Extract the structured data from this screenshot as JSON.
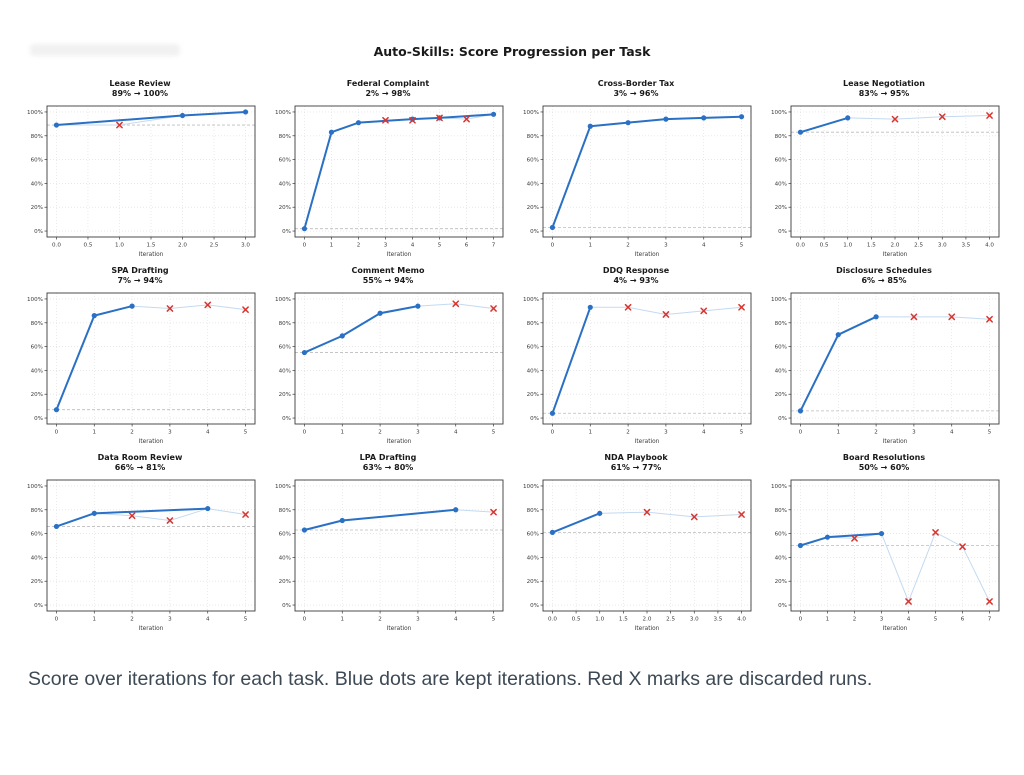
{
  "page": {
    "caption": "Score over iterations for each task. Blue dots are kept iterations. Red X marks are discarded runs."
  },
  "chart_data": {
    "type": "line",
    "title": "Auto-Skills: Score Progression per Task",
    "xlabel": "Iteration",
    "ylim": [
      0,
      100
    ],
    "yticks": [
      0,
      20,
      40,
      60,
      80,
      100
    ],
    "ytick_labels": [
      "0%",
      "20%",
      "40%",
      "60%",
      "80%",
      "100%"
    ],
    "grid": true,
    "legend_note": {
      "kept": "Blue dots = kept iterations",
      "discarded": "Red X = discarded runs"
    },
    "colors": {
      "kept_line": "#2a70c4",
      "kept_dot": "#2a70c4",
      "run_line": "#c3daf1",
      "discarded_x": "#d9352f",
      "baseline": "#bcbcbc",
      "gridline": "#dcdcdc",
      "spine": "#3a3a3a",
      "tick_text": "#3a3a3a"
    },
    "subplots": [
      {
        "title": "Lease Review",
        "subtitle": "89% → 100%",
        "xticks": [
          0,
          0.5,
          1,
          1.5,
          2,
          2.5,
          3
        ],
        "xtick_labels": [
          "0.0",
          "0.5",
          "1.0",
          "1.5",
          "2.0",
          "2.5",
          "3.0"
        ],
        "baseline": 89,
        "kept": [
          [
            0,
            89
          ],
          [
            2,
            97
          ],
          [
            3,
            100
          ]
        ],
        "discarded": [
          [
            1,
            89
          ]
        ]
      },
      {
        "title": "Federal Complaint",
        "subtitle": "2% → 98%",
        "xticks": [
          0,
          1,
          2,
          3,
          4,
          5,
          6,
          7
        ],
        "xtick_labels": [
          "0",
          "1",
          "2",
          "3",
          "4",
          "5",
          "6",
          "7"
        ],
        "baseline": 2,
        "kept": [
          [
            0,
            2
          ],
          [
            1,
            83
          ],
          [
            2,
            91
          ],
          [
            4,
            94
          ],
          [
            5,
            95
          ],
          [
            7,
            98
          ]
        ],
        "discarded": [
          [
            3,
            93
          ],
          [
            4,
            93
          ],
          [
            5,
            95
          ],
          [
            6,
            94
          ]
        ]
      },
      {
        "title": "Cross-Border Tax",
        "subtitle": "3% → 96%",
        "xticks": [
          0,
          1,
          2,
          3,
          4,
          5
        ],
        "xtick_labels": [
          "0",
          "1",
          "2",
          "3",
          "4",
          "5"
        ],
        "baseline": 3,
        "kept": [
          [
            0,
            3
          ],
          [
            1,
            88
          ],
          [
            2,
            91
          ],
          [
            3,
            94
          ],
          [
            4,
            95
          ],
          [
            5,
            96
          ]
        ],
        "discarded": []
      },
      {
        "title": "Lease Negotiation",
        "subtitle": "83% → 95%",
        "xticks": [
          0,
          0.5,
          1,
          1.5,
          2,
          2.5,
          3,
          3.5,
          4
        ],
        "xtick_labels": [
          "0.0",
          "0.5",
          "1.0",
          "1.5",
          "2.0",
          "2.5",
          "3.0",
          "3.5",
          "4.0"
        ],
        "baseline": 83,
        "kept": [
          [
            0,
            83
          ],
          [
            1,
            95
          ]
        ],
        "discarded": [
          [
            2,
            94
          ],
          [
            3,
            96
          ],
          [
            4,
            97
          ]
        ]
      },
      {
        "title": "SPA Drafting",
        "subtitle": "7% → 94%",
        "xticks": [
          0,
          1,
          2,
          3,
          4,
          5
        ],
        "xtick_labels": [
          "0",
          "1",
          "2",
          "3",
          "4",
          "5"
        ],
        "baseline": 7,
        "kept": [
          [
            0,
            7
          ],
          [
            1,
            86
          ],
          [
            2,
            94
          ]
        ],
        "discarded": [
          [
            3,
            92
          ],
          [
            4,
            95
          ],
          [
            5,
            91
          ]
        ]
      },
      {
        "title": "Comment Memo",
        "subtitle": "55% → 94%",
        "xticks": [
          0,
          1,
          2,
          3,
          4,
          5
        ],
        "xtick_labels": [
          "0",
          "1",
          "2",
          "3",
          "4",
          "5"
        ],
        "baseline": 55,
        "kept": [
          [
            0,
            55
          ],
          [
            1,
            69
          ],
          [
            2,
            88
          ],
          [
            3,
            94
          ]
        ],
        "discarded": [
          [
            4,
            96
          ],
          [
            5,
            92
          ]
        ]
      },
      {
        "title": "DDQ Response",
        "subtitle": "4% → 93%",
        "xticks": [
          0,
          1,
          2,
          3,
          4,
          5
        ],
        "xtick_labels": [
          "0",
          "1",
          "2",
          "3",
          "4",
          "5"
        ],
        "baseline": 4,
        "kept": [
          [
            0,
            4
          ],
          [
            1,
            93
          ]
        ],
        "discarded": [
          [
            2,
            93
          ],
          [
            3,
            87
          ],
          [
            4,
            90
          ],
          [
            5,
            93
          ]
        ]
      },
      {
        "title": "Disclosure Schedules",
        "subtitle": "6% → 85%",
        "xticks": [
          0,
          1,
          2,
          3,
          4,
          5
        ],
        "xtick_labels": [
          "0",
          "1",
          "2",
          "3",
          "4",
          "5"
        ],
        "baseline": 6,
        "kept": [
          [
            0,
            6
          ],
          [
            1,
            70
          ],
          [
            2,
            85
          ]
        ],
        "discarded": [
          [
            3,
            85
          ],
          [
            4,
            85
          ],
          [
            5,
            83
          ]
        ]
      },
      {
        "title": "Data Room Review",
        "subtitle": "66% → 81%",
        "xticks": [
          0,
          1,
          2,
          3,
          4,
          5
        ],
        "xtick_labels": [
          "0",
          "1",
          "2",
          "3",
          "4",
          "5"
        ],
        "baseline": 66,
        "kept": [
          [
            0,
            66
          ],
          [
            1,
            77
          ],
          [
            4,
            81
          ]
        ],
        "discarded": [
          [
            2,
            75
          ],
          [
            3,
            71
          ],
          [
            5,
            76
          ]
        ]
      },
      {
        "title": "LPA Drafting",
        "subtitle": "63% → 80%",
        "xticks": [
          0,
          1,
          2,
          3,
          4,
          5
        ],
        "xtick_labels": [
          "0",
          "1",
          "2",
          "3",
          "4",
          "5"
        ],
        "baseline": 63,
        "kept": [
          [
            0,
            63
          ],
          [
            1,
            71
          ],
          [
            4,
            80
          ]
        ],
        "discarded": [
          [
            5,
            78
          ]
        ]
      },
      {
        "title": "NDA Playbook",
        "subtitle": "61% → 77%",
        "xticks": [
          0,
          0.5,
          1,
          1.5,
          2,
          2.5,
          3,
          3.5,
          4
        ],
        "xtick_labels": [
          "0.0",
          "0.5",
          "1.0",
          "1.5",
          "2.0",
          "2.5",
          "3.0",
          "3.5",
          "4.0"
        ],
        "baseline": 61,
        "kept": [
          [
            0,
            61
          ],
          [
            1,
            77
          ]
        ],
        "discarded": [
          [
            2,
            78
          ],
          [
            3,
            74
          ],
          [
            4,
            76
          ]
        ]
      },
      {
        "title": "Board Resolutions",
        "subtitle": "50% → 60%",
        "xticks": [
          0,
          1,
          2,
          3,
          4,
          5,
          6,
          7
        ],
        "xtick_labels": [
          "0",
          "1",
          "2",
          "3",
          "4",
          "5",
          "6",
          "7"
        ],
        "baseline": 50,
        "kept": [
          [
            0,
            50
          ],
          [
            1,
            57
          ],
          [
            3,
            60
          ]
        ],
        "discarded": [
          [
            2,
            56
          ],
          [
            4,
            3
          ],
          [
            5,
            61
          ],
          [
            6,
            49
          ],
          [
            7,
            3
          ]
        ]
      }
    ]
  }
}
